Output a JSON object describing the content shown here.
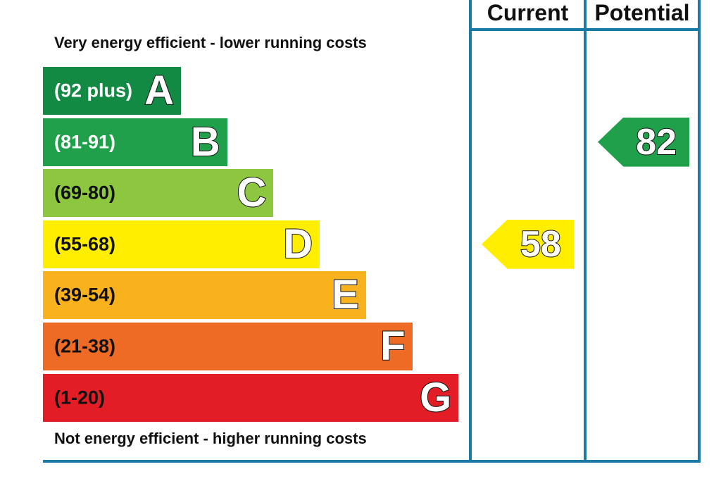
{
  "chart_data": {
    "type": "bar",
    "top_note": "Very energy efficient - lower running costs",
    "bottom_note": "Not energy efficient - higher running costs",
    "bands": [
      {
        "letter": "A",
        "range": "(92 plus)",
        "min": 92,
        "max": 100,
        "color": "#138a43",
        "text_color": "#ffffff"
      },
      {
        "letter": "B",
        "range": "(81-91)",
        "min": 81,
        "max": 91,
        "color": "#20a04a",
        "text_color": "#ffffff"
      },
      {
        "letter": "C",
        "range": "(69-80)",
        "min": 69,
        "max": 80,
        "color": "#8dc63f",
        "text_color": "#111111"
      },
      {
        "letter": "D",
        "range": "(55-68)",
        "min": 55,
        "max": 68,
        "color": "#ffee00",
        "text_color": "#111111"
      },
      {
        "letter": "E",
        "range": "(39-54)",
        "min": 39,
        "max": 54,
        "color": "#f8b21e",
        "text_color": "#111111"
      },
      {
        "letter": "F",
        "range": "(21-38)",
        "min": 21,
        "max": 38,
        "color": "#ed6b24",
        "text_color": "#111111"
      },
      {
        "letter": "G",
        "range": "(1-20)",
        "min": 1,
        "max": 20,
        "color": "#e31d25",
        "text_color": "#111111"
      }
    ],
    "columns": [
      "Current",
      "Potential"
    ],
    "current": {
      "value": 58,
      "band": "D",
      "color": "#ffee00"
    },
    "potential": {
      "value": 82,
      "band": "B",
      "color": "#20a04a"
    }
  }
}
